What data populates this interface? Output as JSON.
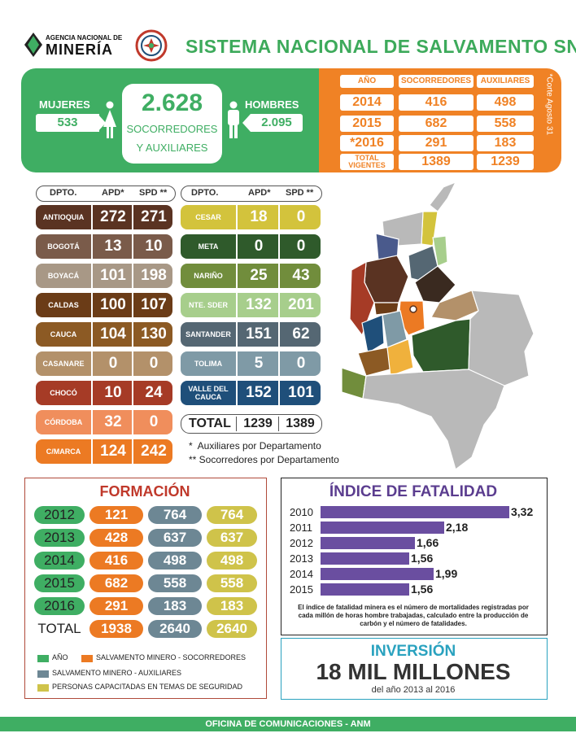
{
  "header": {
    "agency_line1": "AGENCIA NACIONAL DE",
    "agency_line2": "MINERÍA",
    "title": "SISTEMA NACIONAL DE SALVAMENTO SNS"
  },
  "summary": {
    "women_label": "MUJERES",
    "women_value": "533",
    "total_value": "2.628",
    "total_label_line1": "SOCORREDORES",
    "total_label_line2": "Y AUXILIARES",
    "men_label": "HOMBRES",
    "men_value": "2.095"
  },
  "year_table": {
    "headers": [
      "AÑO",
      "SOCORREDORES",
      "AUXILIARES"
    ],
    "rows": [
      {
        "year": "2014",
        "socorredores": "416",
        "auxiliares": "498"
      },
      {
        "year": "2015",
        "socorredores": "682",
        "auxiliares": "558"
      },
      {
        "year": "*2016",
        "socorredores": "291",
        "auxiliares": "183"
      },
      {
        "year": "TOTAL VIGENTES",
        "socorredores": "1389",
        "auxiliares": "1239"
      }
    ],
    "note": "*Corte Agosto 31"
  },
  "dept_table": {
    "headers": [
      "DPTO.",
      "APD*",
      "SPD **"
    ],
    "left": [
      {
        "name": "ANTIOQUIA",
        "apd": "272",
        "spd": "271",
        "color": "#5a3322"
      },
      {
        "name": "BOGOTÁ",
        "apd": "13",
        "spd": "10",
        "color": "#7a5b4a"
      },
      {
        "name": "BOYACÁ",
        "apd": "101",
        "spd": "198",
        "color": "#a89886"
      },
      {
        "name": "CALDAS",
        "apd": "100",
        "spd": "107",
        "color": "#6b3c17"
      },
      {
        "name": "CAUCA",
        "apd": "104",
        "spd": "130",
        "color": "#8c5a24"
      },
      {
        "name": "CASANARE",
        "apd": "0",
        "spd": "0",
        "color": "#b3916a"
      },
      {
        "name": "CHOCÓ",
        "apd": "10",
        "spd": "24",
        "color": "#a63b26"
      },
      {
        "name": "CÓRDOBA",
        "apd": "32",
        "spd": "0",
        "color": "#f08e5c"
      },
      {
        "name": "C/MARCA",
        "apd": "124",
        "spd": "242",
        "color": "#ec7a23"
      }
    ],
    "right": [
      {
        "name": "CESAR",
        "apd": "18",
        "spd": "0",
        "color": "#d3c33c"
      },
      {
        "name": "META",
        "apd": "0",
        "spd": "0",
        "color": "#2f5a2b"
      },
      {
        "name": "NARIÑO",
        "apd": "25",
        "spd": "43",
        "color": "#718d3c"
      },
      {
        "name": "NTE. SDER",
        "apd": "132",
        "spd": "201",
        "color": "#a7ce8c"
      },
      {
        "name": "SANTANDER",
        "apd": "151",
        "spd": "62",
        "color": "#556773"
      },
      {
        "name": "TOLIMA",
        "apd": "5",
        "spd": "0",
        "color": "#7f9aa6"
      },
      {
        "name": "VALLE DEL CAUCA",
        "apd": "152",
        "spd": "101",
        "color": "#1f4f7a"
      }
    ],
    "total_label": "TOTAL",
    "total_apd": "1239",
    "total_spd": "1389",
    "note1": "*  Auxiliares por Departamento",
    "note2": "** Socorredores por Departamento"
  },
  "formacion": {
    "title": "FORMACIÓN",
    "rows": [
      {
        "year": "2012",
        "socorredores": "121",
        "auxiliares": "764",
        "capacitadas": "764"
      },
      {
        "year": "2013",
        "socorredores": "428",
        "auxiliares": "637",
        "capacitadas": "637"
      },
      {
        "year": "2014",
        "socorredores": "416",
        "auxiliares": "498",
        "capacitadas": "498"
      },
      {
        "year": "2015",
        "socorredores": "682",
        "auxiliares": "558",
        "capacitadas": "558"
      },
      {
        "year": "2016",
        "socorredores": "291",
        "auxiliares": "183",
        "capacitadas": "183"
      }
    ],
    "total": {
      "year": "TOTAL",
      "socorredores": "1938",
      "auxiliares": "2640",
      "capacitadas": "2640"
    },
    "legend": [
      {
        "label": "AÑO",
        "color": "#3fae63"
      },
      {
        "label": "SALVAMENTO MINERO - SOCORREDORES",
        "color": "#ec7a23"
      },
      {
        "label": "SALVAMENTO MINERO - AUXILIARES",
        "color": "#6d8794"
      },
      {
        "label": "PERSONAS CAPACITADAS EN TEMAS DE SEGURIDAD",
        "color": "#cfc34a"
      }
    ],
    "colors": {
      "year": "#3fae63",
      "socorredores": "#ec7a23",
      "auxiliares": "#6d8794",
      "capacitadas": "#cfc34a"
    }
  },
  "chart_data": {
    "type": "bar",
    "title": "ÍNDICE DE FATALIDAD",
    "categories": [
      "2010",
      "2011",
      "2012",
      "2013",
      "2014",
      "2015"
    ],
    "values": [
      3.32,
      2.18,
      1.66,
      1.56,
      1.99,
      1.56
    ],
    "value_labels": [
      "3,32",
      "2,18",
      "1,66",
      "1,56",
      "1,99",
      "1,56"
    ],
    "orientation": "horizontal",
    "xlim": [
      0,
      3.32
    ],
    "color": "#6a4ea0",
    "note": "El índice de fatalidad minera es el número de mortalidades registradas por cada millón de horas hombre trabajadas, calculado entre la producción de carbón y el número de fatalidades."
  },
  "inversion": {
    "title": "INVERSIÓN",
    "amount": "18 MIL MILLONES",
    "period": "del año 2013 al 2016"
  },
  "footer": {
    "text": "OFICINA DE COMUNICACIONES - ANM"
  }
}
